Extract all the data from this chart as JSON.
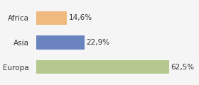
{
  "categories": [
    "Africa",
    "Asia",
    "Europa"
  ],
  "values": [
    14.6,
    22.9,
    62.5
  ],
  "labels": [
    "14,6%",
    "22,9%",
    "62,5%"
  ],
  "bar_colors": [
    "#f0b97e",
    "#6b84c0",
    "#b5c98e"
  ],
  "background_color": "#f5f5f5",
  "xlim": [
    0,
    75
  ],
  "bar_height": 0.55,
  "label_fontsize": 7.5,
  "tick_fontsize": 7.5
}
